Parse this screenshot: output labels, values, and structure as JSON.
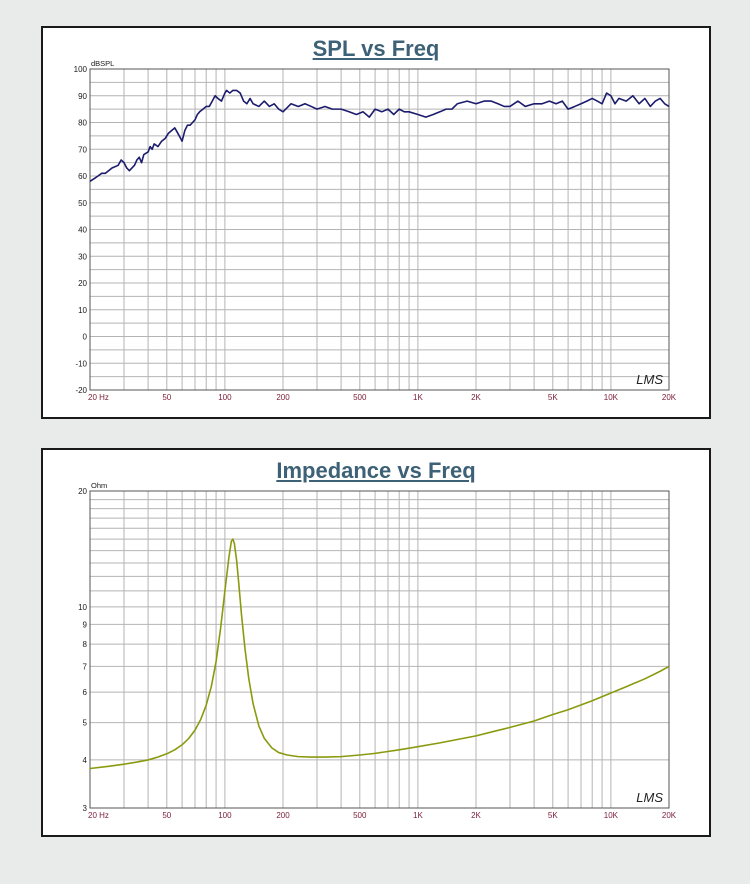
{
  "chart_data": [
    {
      "type": "line",
      "title": "SPL vs Freq",
      "xlabel": "",
      "ylabel": "dBSPL",
      "xscale": "log",
      "xlim": [
        20,
        20000
      ],
      "ylim": [
        -20,
        100
      ],
      "grid": true,
      "watermark": "LMS",
      "line_color": "#1c1c6e",
      "x_ticks": [
        {
          "value": 20,
          "label": "20 Hz"
        },
        {
          "value": 50,
          "label": "50"
        },
        {
          "value": 100,
          "label": "100"
        },
        {
          "value": 200,
          "label": "200"
        },
        {
          "value": 500,
          "label": "500"
        },
        {
          "value": 1000,
          "label": "1K"
        },
        {
          "value": 2000,
          "label": "2K"
        },
        {
          "value": 5000,
          "label": "5K"
        },
        {
          "value": 10000,
          "label": "10K"
        },
        {
          "value": 20000,
          "label": "20K"
        }
      ],
      "y_ticks": [
        {
          "value": 100,
          "label": "100"
        },
        {
          "value": 90,
          "label": "90"
        },
        {
          "value": 80,
          "label": "80"
        },
        {
          "value": 70,
          "label": "70"
        },
        {
          "value": 60,
          "label": "60"
        },
        {
          "value": 50,
          "label": "50"
        },
        {
          "value": 40,
          "label": "40"
        },
        {
          "value": 30,
          "label": "30"
        },
        {
          "value": 20,
          "label": "20"
        },
        {
          "value": 10,
          "label": "10"
        },
        {
          "value": 0,
          "label": "0"
        },
        {
          "value": -10,
          "label": "-10"
        },
        {
          "value": -20,
          "label": "-20"
        }
      ],
      "series": [
        {
          "x": [
            20,
            21,
            22,
            23,
            24,
            26,
            28,
            29,
            30,
            31,
            32,
            33,
            34,
            35,
            36,
            37,
            38,
            40,
            41,
            42,
            43,
            45,
            47,
            49,
            51,
            53,
            55,
            57,
            59,
            60,
            62,
            64,
            66,
            68,
            70,
            72,
            74,
            77,
            80,
            83,
            86,
            89,
            92,
            96,
            100,
            102,
            106,
            110,
            115,
            120,
            125,
            130,
            135,
            140,
            150,
            160,
            170,
            180,
            190,
            200,
            220,
            240,
            260,
            280,
            300,
            330,
            360,
            400,
            440,
            480,
            520,
            560,
            600,
            650,
            700,
            750,
            800,
            850,
            900,
            1000,
            1100,
            1200,
            1300,
            1400,
            1500,
            1600,
            1800,
            2000,
            2200,
            2400,
            2600,
            2800,
            3000,
            3300,
            3600,
            4000,
            4400,
            4800,
            5200,
            5600,
            6000,
            6500,
            7000,
            7500,
            8000,
            8500,
            9000,
            9500,
            10000,
            10500,
            11000,
            12000,
            13000,
            14000,
            15000,
            16000,
            17000,
            18000,
            19000,
            20000
          ],
          "y": [
            58,
            59,
            60,
            61,
            61,
            63,
            64,
            66,
            65,
            63,
            62,
            63,
            64,
            66,
            67,
            65,
            68,
            69,
            71,
            70,
            72,
            71,
            73,
            74,
            76,
            77,
            78,
            76,
            74,
            73,
            77,
            79,
            79,
            80,
            81,
            83,
            84,
            85,
            86,
            86,
            88,
            90,
            89,
            88,
            91,
            92,
            91,
            92,
            92,
            91,
            88,
            87,
            89,
            87,
            86,
            88,
            86,
            87,
            85,
            84,
            87,
            86,
            87,
            86,
            85,
            86,
            85,
            85,
            84,
            83,
            84,
            82,
            85,
            84,
            85,
            83,
            85,
            84,
            84,
            83,
            82,
            83,
            84,
            85,
            85,
            87,
            88,
            87,
            88,
            88,
            87,
            86,
            86,
            88,
            86,
            87,
            87,
            88,
            87,
            88,
            85,
            86,
            87,
            88,
            89,
            88,
            87,
            91,
            90,
            87,
            89,
            88,
            90,
            87,
            89,
            86,
            88,
            89,
            87,
            86
          ]
        }
      ]
    },
    {
      "type": "line",
      "title": "Impedance vs Freq",
      "xlabel": "",
      "ylabel": "Ohm",
      "xscale": "log",
      "yscale": "log",
      "xlim": [
        20,
        20000
      ],
      "ylim": [
        3,
        20
      ],
      "grid": true,
      "watermark": "LMS",
      "line_color": "#8a9a0e",
      "x_ticks": [
        {
          "value": 20,
          "label": "20 Hz"
        },
        {
          "value": 50,
          "label": "50"
        },
        {
          "value": 100,
          "label": "100"
        },
        {
          "value": 200,
          "label": "200"
        },
        {
          "value": 500,
          "label": "500"
        },
        {
          "value": 1000,
          "label": "1K"
        },
        {
          "value": 2000,
          "label": "2K"
        },
        {
          "value": 5000,
          "label": "5K"
        },
        {
          "value": 10000,
          "label": "10K"
        },
        {
          "value": 20000,
          "label": "20K"
        }
      ],
      "y_ticks": [
        {
          "value": 20,
          "label": "20"
        },
        {
          "value": 10,
          "label": "10"
        },
        {
          "value": 9,
          "label": "9"
        },
        {
          "value": 8,
          "label": "8"
        },
        {
          "value": 7,
          "label": "7"
        },
        {
          "value": 6,
          "label": "6"
        },
        {
          "value": 5,
          "label": "5"
        },
        {
          "value": 4,
          "label": "4"
        },
        {
          "value": 3,
          "label": "3"
        }
      ],
      "series": [
        {
          "x": [
            20,
            25,
            30,
            35,
            40,
            45,
            50,
            55,
            60,
            65,
            70,
            75,
            80,
            85,
            90,
            95,
            100,
            105,
            108,
            110,
            112,
            115,
            118,
            122,
            127,
            133,
            140,
            150,
            160,
            175,
            190,
            210,
            240,
            280,
            330,
            400,
            500,
            600,
            800,
            1000,
            1300,
            1600,
            2000,
            2500,
            3000,
            4000,
            5000,
            6000,
            8000,
            10000,
            12000,
            15000,
            18000,
            20000
          ],
          "y": [
            3.8,
            3.85,
            3.9,
            3.95,
            4.0,
            4.07,
            4.15,
            4.25,
            4.38,
            4.55,
            4.78,
            5.1,
            5.55,
            6.2,
            7.2,
            8.8,
            11.0,
            13.5,
            14.8,
            15.0,
            14.6,
            13.2,
            11.5,
            9.5,
            7.8,
            6.5,
            5.6,
            4.9,
            4.55,
            4.3,
            4.18,
            4.12,
            4.08,
            4.07,
            4.07,
            4.08,
            4.12,
            4.16,
            4.25,
            4.33,
            4.43,
            4.52,
            4.62,
            4.75,
            4.86,
            5.05,
            5.25,
            5.4,
            5.7,
            5.97,
            6.2,
            6.5,
            6.8,
            7.0
          ]
        }
      ]
    }
  ]
}
